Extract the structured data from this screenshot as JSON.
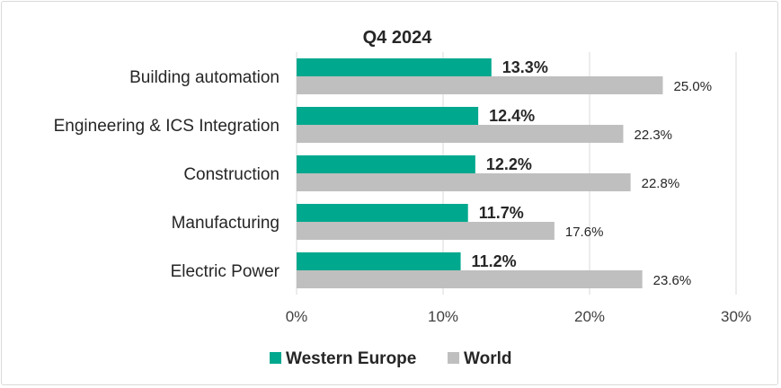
{
  "chart_data": {
    "type": "bar",
    "orientation": "horizontal",
    "title": "Q4 2024",
    "categories": [
      "Building automation",
      "Engineering & ICS Integration",
      "Construction",
      "Manufacturing",
      "Electric Power"
    ],
    "series": [
      {
        "name": "Western Europe",
        "color": "#00a88e",
        "values": [
          13.3,
          12.4,
          12.2,
          11.7,
          11.2
        ],
        "labels": [
          "13.3%",
          "12.4%",
          "12.2%",
          "11.7%",
          "11.2%"
        ]
      },
      {
        "name": "World",
        "color": "#bfbfbf",
        "values": [
          25.0,
          22.3,
          22.8,
          17.6,
          23.6
        ],
        "labels": [
          "25.0%",
          "22.3%",
          "22.8%",
          "17.6%",
          "23.6%"
        ]
      }
    ],
    "xlim": [
      0,
      30
    ],
    "xticks": [
      0,
      10,
      20,
      30
    ],
    "xtick_labels": [
      "0%",
      "10%",
      "20%",
      "30%"
    ],
    "grid": "vertical",
    "legend_position": "bottom"
  }
}
